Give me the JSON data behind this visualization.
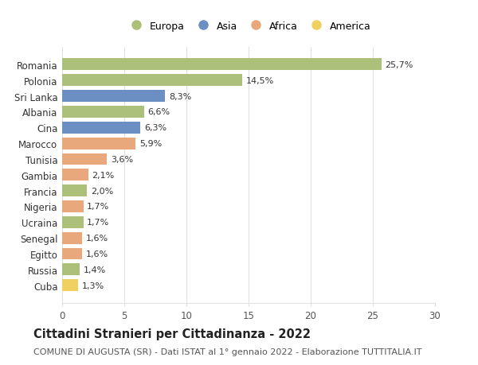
{
  "categories": [
    "Romania",
    "Polonia",
    "Sri Lanka",
    "Albania",
    "Cina",
    "Marocco",
    "Tunisia",
    "Gambia",
    "Francia",
    "Nigeria",
    "Ucraina",
    "Senegal",
    "Egitto",
    "Russia",
    "Cuba"
  ],
  "values": [
    25.7,
    14.5,
    8.3,
    6.6,
    6.3,
    5.9,
    3.6,
    2.1,
    2.0,
    1.7,
    1.7,
    1.6,
    1.6,
    1.4,
    1.3
  ],
  "labels": [
    "25,7%",
    "14,5%",
    "8,3%",
    "6,6%",
    "6,3%",
    "5,9%",
    "3,6%",
    "2,1%",
    "2,0%",
    "1,7%",
    "1,7%",
    "1,6%",
    "1,6%",
    "1,4%",
    "1,3%"
  ],
  "continents": [
    "Europa",
    "Europa",
    "Asia",
    "Europa",
    "Asia",
    "Africa",
    "Africa",
    "Africa",
    "Europa",
    "Africa",
    "Europa",
    "Africa",
    "Africa",
    "Europa",
    "America"
  ],
  "continent_colors": {
    "Europa": "#adc07a",
    "Asia": "#6b8fc2",
    "Africa": "#e8a87c",
    "America": "#f0d060"
  },
  "legend_order": [
    "Europa",
    "Asia",
    "Africa",
    "America"
  ],
  "title": "Cittadini Stranieri per Cittadinanza - 2022",
  "subtitle": "COMUNE DI AUGUSTA (SR) - Dati ISTAT al 1° gennaio 2022 - Elaborazione TUTTITALIA.IT",
  "xlim": [
    0,
    30
  ],
  "xticks": [
    0,
    5,
    10,
    15,
    20,
    25,
    30
  ],
  "background_color": "#ffffff",
  "grid_color": "#dddddd",
  "bar_height": 0.75,
  "title_fontsize": 10.5,
  "subtitle_fontsize": 8,
  "label_fontsize": 8,
  "tick_fontsize": 8.5,
  "legend_fontsize": 9
}
